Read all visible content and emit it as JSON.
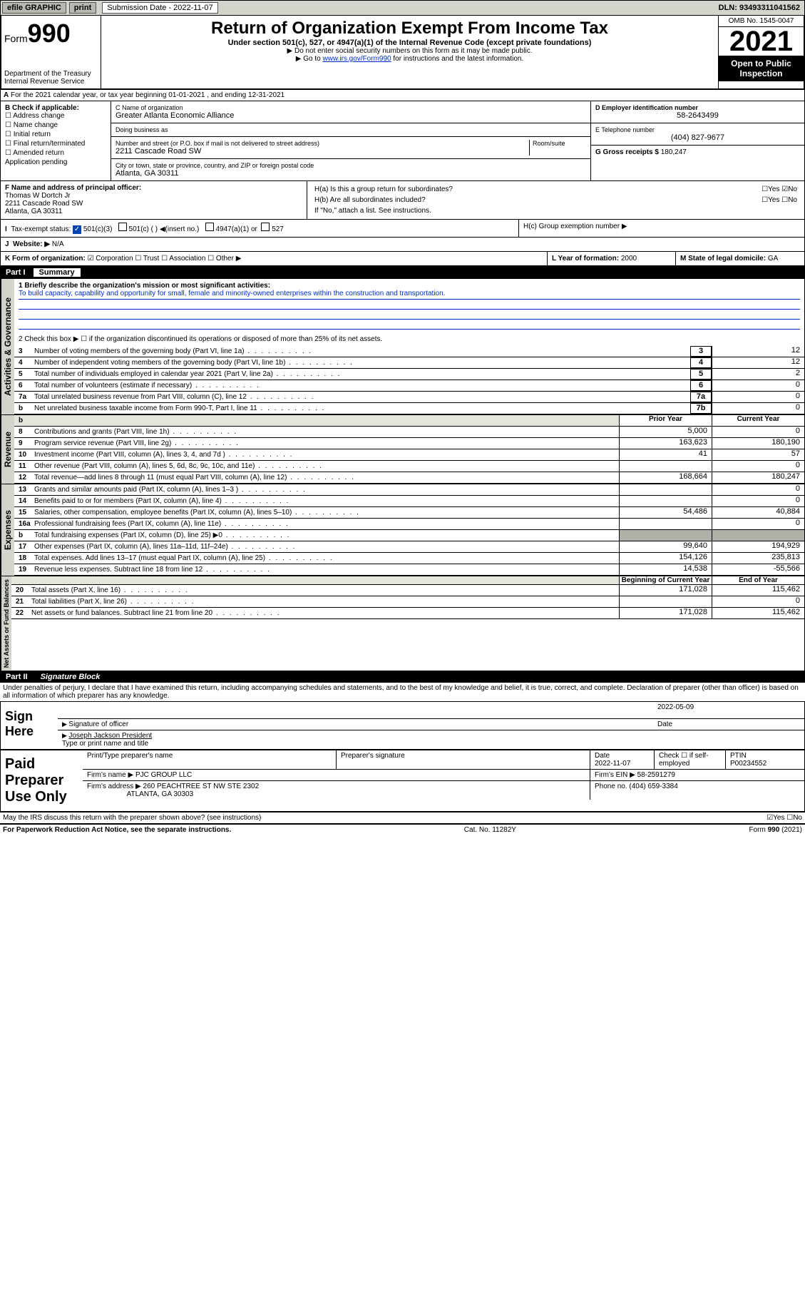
{
  "topbar": {
    "efile": "efile GRAPHIC",
    "print": "print",
    "subdate_lbl": "Submission Date - 2022-11-07",
    "dln": "DLN: 93493311041562"
  },
  "header": {
    "form": "Form",
    "num": "990",
    "dept": "Department of the Treasury",
    "irs": "Internal Revenue Service",
    "title": "Return of Organization Exempt From Income Tax",
    "sub": "Under section 501(c), 527, or 4947(a)(1) of the Internal Revenue Code (except private foundations)",
    "note1": "▶ Do not enter social security numbers on this form as it may be made public.",
    "note2_pre": "▶ Go to ",
    "note2_link": "www.irs.gov/Form990",
    "note2_post": " for instructions and the latest information.",
    "omb": "OMB No. 1545-0047",
    "year": "2021",
    "inspect": "Open to Public Inspection"
  },
  "A": {
    "text": "For the 2021 calendar year, or tax year beginning 01-01-2021   , and ending 12-31-2021"
  },
  "B": {
    "lbl": "B Check if applicable:",
    "opts": [
      "☐ Address change",
      "☐ Name change",
      "☐ Initial return",
      "☐ Final return/terminated",
      "☐ Amended return",
      "  Application pending"
    ]
  },
  "C": {
    "name_lbl": "C Name of organization",
    "name": "Greater Atlanta Economic Alliance",
    "dba_lbl": "Doing business as",
    "street_lbl": "Number and street (or P.O. box if mail is not delivered to street address)",
    "room_lbl": "Room/suite",
    "street": "2211 Cascade Road SW",
    "city_lbl": "City or town, state or province, country, and ZIP or foreign postal code",
    "city": "Atlanta, GA  30311"
  },
  "D": {
    "lbl": "D Employer identification number",
    "val": "58-2643499"
  },
  "E": {
    "lbl": "E Telephone number",
    "val": "(404) 827-9677"
  },
  "G": {
    "lbl": "G Gross receipts $",
    "val": "180,247"
  },
  "F": {
    "lbl": "F  Name and address of principal officer:",
    "name": "Thomas W Dortch Jr",
    "addr": "2211 Cascade Road SW",
    "city": "Atlanta, GA  30311"
  },
  "H": {
    "a": "H(a)  Is this a group return for subordinates?",
    "a_ans": "☐Yes ☑No",
    "b": "H(b)  Are all subordinates included?",
    "b_ans": "☐Yes ☐No",
    "bnote": "If \"No,\" attach a list. See instructions.",
    "c": "H(c)  Group exemption number ▶"
  },
  "I": {
    "lbl": "Tax-exempt status:",
    "opt1": "501(c)(3)",
    "opt2": "501(c) (  ) ◀(insert no.)",
    "opt3": "4947(a)(1) or",
    "opt4": "527"
  },
  "J": {
    "lbl": "Website: ▶",
    "val": "N/A"
  },
  "K": {
    "lbl": "K Form of organization:",
    "opts": "☑ Corporation  ☐ Trust  ☐ Association  ☐ Other ▶"
  },
  "L": {
    "lbl": "L Year of formation:",
    "val": "2000"
  },
  "M": {
    "lbl": "M State of legal domicile:",
    "val": "GA"
  },
  "part1": {
    "pt": "Part I",
    "ttl": "Summary"
  },
  "summary": {
    "s1_lbl": "1  Briefly describe the organization's mission or most significant activities:",
    "mission": "To build capacity, capability and opportunity for small, female and minority-owned enterprises within the construction and transportation.",
    "s2": "2    Check this box ▶ ☐  if the organization discontinued its operations or disposed of more than 25% of its net assets.",
    "rows_gov": [
      {
        "n": "3",
        "t": "Number of voting members of the governing body (Part VI, line 1a)",
        "box": "3",
        "v": "12"
      },
      {
        "n": "4",
        "t": "Number of independent voting members of the governing body (Part VI, line 1b)",
        "box": "4",
        "v": "12"
      },
      {
        "n": "5",
        "t": "Total number of individuals employed in calendar year 2021 (Part V, line 2a)",
        "box": "5",
        "v": "2"
      },
      {
        "n": "6",
        "t": "Total number of volunteers (estimate if necessary)",
        "box": "6",
        "v": "0"
      },
      {
        "n": "7a",
        "t": "Total unrelated business revenue from Part VIII, column (C), line 12",
        "box": "7a",
        "v": "0"
      },
      {
        "n": "b",
        "t": "Net unrelated business taxable income from Form 990-T, Part I, line 11",
        "box": "7b",
        "v": "0"
      }
    ],
    "py": "Prior Year",
    "cy": "Current Year",
    "rows_rev": [
      {
        "n": "8",
        "t": "Contributions and grants (Part VIII, line 1h)",
        "py": "5,000",
        "cy": "0"
      },
      {
        "n": "9",
        "t": "Program service revenue (Part VIII, line 2g)",
        "py": "163,623",
        "cy": "180,190"
      },
      {
        "n": "10",
        "t": "Investment income (Part VIII, column (A), lines 3, 4, and 7d )",
        "py": "41",
        "cy": "57"
      },
      {
        "n": "11",
        "t": "Other revenue (Part VIII, column (A), lines 5, 6d, 8c, 9c, 10c, and 11e)",
        "py": "",
        "cy": "0"
      },
      {
        "n": "12",
        "t": "Total revenue—add lines 8 through 11 (must equal Part VIII, column (A), line 12)",
        "py": "168,664",
        "cy": "180,247"
      }
    ],
    "rows_exp": [
      {
        "n": "13",
        "t": "Grants and similar amounts paid (Part IX, column (A), lines 1–3 )",
        "py": "",
        "cy": "0"
      },
      {
        "n": "14",
        "t": "Benefits paid to or for members (Part IX, column (A), line 4)",
        "py": "",
        "cy": "0"
      },
      {
        "n": "15",
        "t": "Salaries, other compensation, employee benefits (Part IX, column (A), lines 5–10)",
        "py": "54,486",
        "cy": "40,884"
      },
      {
        "n": "16a",
        "t": "Professional fundraising fees (Part IX, column (A), line 11e)",
        "py": "",
        "cy": "0"
      },
      {
        "n": "b",
        "t": "Total fundraising expenses (Part IX, column (D), line 25) ▶0",
        "py": "shaded",
        "cy": "shaded"
      },
      {
        "n": "17",
        "t": "Other expenses (Part IX, column (A), lines 11a–11d, 11f–24e)",
        "py": "99,640",
        "cy": "194,929"
      },
      {
        "n": "18",
        "t": "Total expenses. Add lines 13–17 (must equal Part IX, column (A), line 25)",
        "py": "154,126",
        "cy": "235,813"
      },
      {
        "n": "19",
        "t": "Revenue less expenses. Subtract line 18 from line 12",
        "py": "14,538",
        "cy": "-55,566"
      }
    ],
    "boy": "Beginning of Current Year",
    "eoy": "End of Year",
    "rows_net": [
      {
        "n": "20",
        "t": "Total assets (Part X, line 16)",
        "py": "171,028",
        "cy": "115,462"
      },
      {
        "n": "21",
        "t": "Total liabilities (Part X, line 26)",
        "py": "",
        "cy": "0"
      },
      {
        "n": "22",
        "t": "Net assets or fund balances. Subtract line 21 from line 20",
        "py": "171,028",
        "cy": "115,462"
      }
    ],
    "vlabels": {
      "gov": "Activities & Governance",
      "rev": "Revenue",
      "exp": "Expenses",
      "net": "Net Assets or Fund Balances"
    }
  },
  "part2": {
    "pt": "Part II",
    "ttl": "Signature Block"
  },
  "penalty": "Under penalties of perjury, I declare that I have examined this return, including accompanying schedules and statements, and to the best of my knowledge and belief, it is true, correct, and complete. Declaration of preparer (other than officer) is based on all information of which preparer has any knowledge.",
  "sign": {
    "here": "Sign Here",
    "sigoff": "Signature of officer",
    "date": "2022-05-09",
    "datelbl": "Date",
    "name": "Joseph Jackson President",
    "namelbl": "Type or print name and title"
  },
  "paid": {
    "ttl": "Paid Preparer Use Only",
    "h1": "Print/Type preparer's name",
    "h2": "Preparer's signature",
    "h3": "Date",
    "h3v": "2022-11-07",
    "h4": "Check ☐ if self-employed",
    "h5": "PTIN",
    "h5v": "P00234552",
    "firm_lbl": "Firm's name   ▶",
    "firm": "PJC GROUP LLC",
    "ein_lbl": "Firm's EIN ▶",
    "ein": "58-2591279",
    "addr_lbl": "Firm's address ▶",
    "addr": "260 PEACHTREE ST NW STE 2302",
    "addr2": "ATLANTA, GA  30303",
    "phone_lbl": "Phone no.",
    "phone": "(404) 659-3384"
  },
  "footer": {
    "q": "May the IRS discuss this return with the preparer shown above? (see instructions)",
    "ans": "☑Yes  ☐No",
    "pra": "For Paperwork Reduction Act Notice, see the separate instructions.",
    "cat": "Cat. No. 11282Y",
    "form": "Form 990 (2021)"
  }
}
